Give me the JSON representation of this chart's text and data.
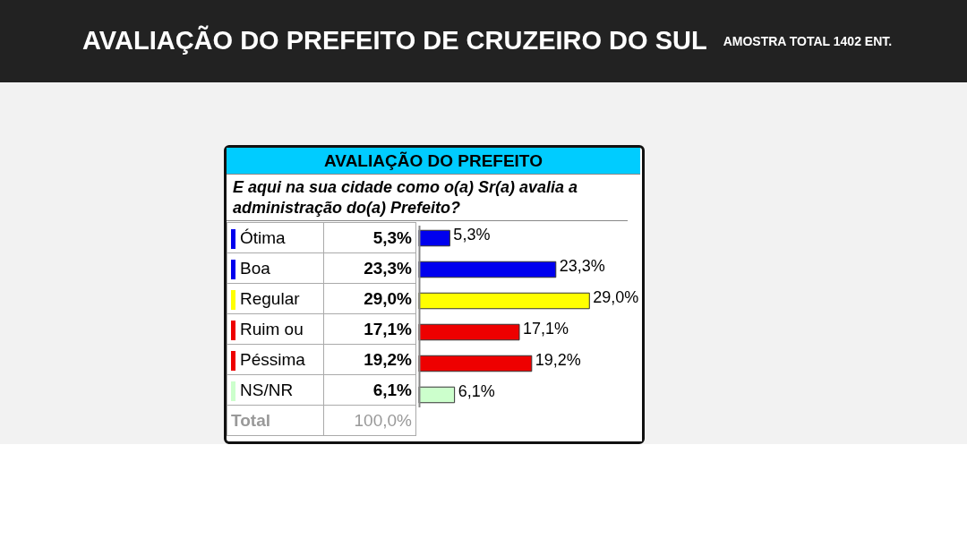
{
  "chart_data": {
    "type": "bar",
    "orientation": "horizontal",
    "title": "AVALIAÇÃO DO PREFEITO DE CRUZEIRO DO SUL",
    "subtitle": "AMOSTRA TOTAL 1402 ENT.",
    "annotations": [
      "AVALIAÇÃO DO PREFEITO",
      "E aqui na sua cidade como o(a) Sr(a) avalia a administração do(a) Prefeito?",
      "Total",
      "100,0%"
    ],
    "categories": [
      "Ótima",
      "Boa",
      "Regular",
      "Ruim ou",
      "Péssima",
      "NS/NR"
    ],
    "values": [
      5.3,
      23.3,
      29.0,
      17.1,
      19.2,
      6.1
    ],
    "value_labels": [
      "5,3%",
      "23,3%",
      "29,0%",
      "17,1%",
      "19,2%",
      "6,1%"
    ],
    "colors": [
      "#0000ee",
      "#0000ee",
      "#ffff00",
      "#ee0000",
      "#ee0000",
      "#ccffcc"
    ],
    "xlim": [
      0,
      38
    ],
    "tick_labels": false,
    "grid": false
  }
}
